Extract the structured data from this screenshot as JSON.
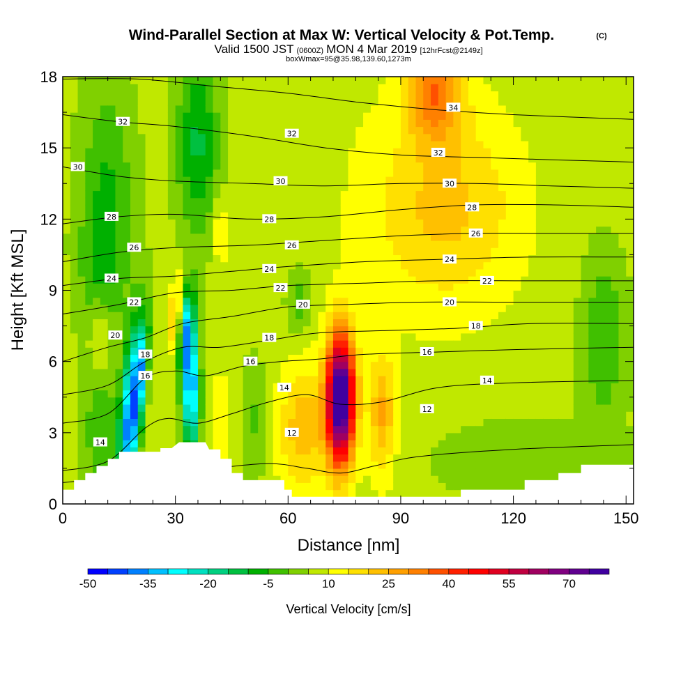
{
  "chart_data": {
    "type": "heatmap",
    "title": "Wind-Parallel Section at Max W: Vertical Velocity & Pot.Temp.",
    "copyright": "(C)",
    "subtitle_valid": "Valid 1500 JST",
    "subtitle_z": "(0600Z)",
    "subtitle_date": "MON 4 Mar 2019",
    "subtitle_fcst": "[12hrFcst@2149z]",
    "subtitle_box": "boxWmax=95@35.98,139.60,1273m",
    "xlabel": "Distance [nm]",
    "ylabel": "Height [Kft MSL]",
    "xlim": [
      0,
      152
    ],
    "ylim": [
      0,
      18
    ],
    "x_ticks": [
      0,
      30,
      60,
      90,
      120,
      150
    ],
    "y_ticks": [
      0,
      3,
      6,
      9,
      12,
      15,
      18
    ],
    "colorbar": {
      "label": "Vertical Velocity [cm/s]",
      "min": -50,
      "max": 80,
      "tick_values": [
        -50,
        -35,
        -20,
        -5,
        10,
        25,
        40,
        55,
        70
      ],
      "colors": [
        "#0000ff",
        "#0040ff",
        "#0080ff",
        "#00c0ff",
        "#00ffff",
        "#00e0c0",
        "#00d080",
        "#00c040",
        "#00b000",
        "#40c000",
        "#80d000",
        "#c0e800",
        "#ffff00",
        "#ffe000",
        "#ffc000",
        "#ffa000",
        "#ff8000",
        "#ff5000",
        "#ff2000",
        "#ff0000",
        "#e00020",
        "#c00040",
        "#a00060",
        "#800080",
        "#600090",
        "#4000a0"
      ]
    },
    "terrain_profile": [
      [
        0,
        0.6
      ],
      [
        3,
        0.6
      ],
      [
        3,
        1.0
      ],
      [
        6,
        1.0
      ],
      [
        6,
        1.3
      ],
      [
        9,
        1.3
      ],
      [
        9,
        1.6
      ],
      [
        12,
        1.6
      ],
      [
        12,
        1.9
      ],
      [
        15,
        1.9
      ],
      [
        15,
        2.2
      ],
      [
        18,
        2.2
      ],
      [
        26,
        2.2
      ],
      [
        26,
        2.35
      ],
      [
        29,
        2.35
      ],
      [
        31,
        2.6
      ],
      [
        38,
        2.6
      ],
      [
        39,
        2.3
      ],
      [
        42,
        2.3
      ],
      [
        42,
        1.9
      ],
      [
        45,
        1.9
      ],
      [
        45,
        1.3
      ],
      [
        48,
        1.3
      ],
      [
        48,
        1.0
      ],
      [
        59,
        1.0
      ],
      [
        59,
        0.6
      ],
      [
        61,
        0.6
      ],
      [
        61,
        0.3
      ],
      [
        106,
        0.3
      ],
      [
        106,
        0.6
      ],
      [
        123,
        0.6
      ],
      [
        123,
        1.0
      ],
      [
        132,
        1.0
      ],
      [
        132,
        1.3
      ],
      [
        138,
        1.3
      ],
      [
        138,
        1.65
      ],
      [
        152,
        1.65
      ]
    ],
    "velocity_features": [
      {
        "x": 18,
        "y": 3.8,
        "sx": 3.0,
        "sy": 1.6,
        "rot": 55,
        "amp": -45
      },
      {
        "x": 21,
        "y": 5.6,
        "sx": 2.0,
        "sy": 0.9,
        "rot": 55,
        "amp": -25
      },
      {
        "x": 34,
        "y": 5.2,
        "sx": 1.6,
        "sy": 2.2,
        "rot": 15,
        "amp": -45
      },
      {
        "x": 33,
        "y": 7.5,
        "sx": 1.5,
        "sy": 1.0,
        "rot": 30,
        "amp": -18
      },
      {
        "x": 10,
        "y": 3.0,
        "sx": 3.5,
        "sy": 2.0,
        "rot": 0,
        "amp": -10
      },
      {
        "x": 12,
        "y": 13.0,
        "sx": 5.0,
        "sy": 3.5,
        "rot": 0,
        "amp": -12
      },
      {
        "x": 10,
        "y": 9.8,
        "sx": 4.0,
        "sy": 2.0,
        "rot": 0,
        "amp": -8
      },
      {
        "x": 36,
        "y": 15.2,
        "sx": 4.0,
        "sy": 2.8,
        "rot": 0,
        "amp": -18
      },
      {
        "x": 63,
        "y": 8.5,
        "sx": 2.5,
        "sy": 1.0,
        "rot": 0,
        "amp": -10
      },
      {
        "x": 51,
        "y": 3.5,
        "sx": 2.5,
        "sy": 2.0,
        "rot": 0,
        "amp": -8
      },
      {
        "x": 144,
        "y": 7.0,
        "sx": 4.0,
        "sy": 2.5,
        "rot": 0,
        "amp": -12
      },
      {
        "x": 120,
        "y": 1.8,
        "sx": 18.0,
        "sy": 1.3,
        "rot": 0,
        "amp": -6
      },
      {
        "x": 74,
        "y": 4.4,
        "sx": 2.6,
        "sy": 1.9,
        "rot": 0,
        "amp": 80
      },
      {
        "x": 64,
        "y": 3.2,
        "sx": 4.5,
        "sy": 1.8,
        "rot": 0,
        "amp": 16
      },
      {
        "x": 85,
        "y": 3.8,
        "sx": 2.5,
        "sy": 1.8,
        "rot": 0,
        "amp": 18
      },
      {
        "x": 99,
        "y": 17.5,
        "sx": 5.0,
        "sy": 1.5,
        "rot": 0,
        "amp": 25
      },
      {
        "x": 102,
        "y": 12.5,
        "sx": 14.0,
        "sy": 3.0,
        "rot": 0,
        "amp": 14
      },
      {
        "x": 30,
        "y": 8.2,
        "sx": 1.8,
        "sy": 0.9,
        "rot": 30,
        "amp": 16
      },
      {
        "x": 42,
        "y": 3.5,
        "sx": 2.0,
        "sy": 1.5,
        "rot": 0,
        "amp": 8
      },
      {
        "x": 42,
        "y": 11.5,
        "sx": 1.5,
        "sy": 1.0,
        "rot": 0,
        "amp": 10
      },
      {
        "x": 10,
        "y": 7.2,
        "sx": 2.0,
        "sy": 1.2,
        "rot": 0,
        "amp": 10
      }
    ],
    "isentropes": [
      {
        "level": 12,
        "points": [
          [
            0,
            0.9
          ],
          [
            20,
            1.2
          ],
          [
            40,
            1.5
          ],
          [
            55,
            1.7
          ],
          [
            65,
            1.5
          ],
          [
            74,
            1.3
          ],
          [
            83,
            1.6
          ],
          [
            95,
            2.0
          ],
          [
            120,
            2.3
          ],
          [
            152,
            2.5
          ]
        ]
      },
      {
        "level": 14,
        "points": [
          [
            0,
            1.4
          ],
          [
            12,
            1.8
          ],
          [
            22,
            3.2
          ],
          [
            28,
            3.6
          ],
          [
            36,
            3.4
          ],
          [
            45,
            3.8
          ],
          [
            55,
            4.3
          ],
          [
            65,
            4.6
          ],
          [
            74,
            4.2
          ],
          [
            85,
            4.3
          ],
          [
            100,
            4.9
          ],
          [
            120,
            5.1
          ],
          [
            152,
            5.2
          ]
        ]
      },
      {
        "level": 16,
        "points": [
          [
            0,
            3.4
          ],
          [
            12,
            3.8
          ],
          [
            22,
            5.3
          ],
          [
            30,
            5.6
          ],
          [
            38,
            5.4
          ],
          [
            48,
            5.8
          ],
          [
            58,
            6.0
          ],
          [
            68,
            6.1
          ],
          [
            80,
            6.3
          ],
          [
            100,
            6.4
          ],
          [
            120,
            6.5
          ],
          [
            152,
            6.6
          ]
        ]
      },
      {
        "level": 18,
        "points": [
          [
            0,
            4.6
          ],
          [
            12,
            5.0
          ],
          [
            22,
            6.0
          ],
          [
            32,
            6.6
          ],
          [
            42,
            6.6
          ],
          [
            55,
            6.9
          ],
          [
            68,
            7.2
          ],
          [
            85,
            7.3
          ],
          [
            105,
            7.4
          ],
          [
            125,
            7.6
          ],
          [
            152,
            7.6
          ]
        ]
      },
      {
        "level": 20,
        "points": [
          [
            0,
            6.0
          ],
          [
            12,
            6.6
          ],
          [
            22,
            7.0
          ],
          [
            32,
            7.6
          ],
          [
            45,
            7.9
          ],
          [
            60,
            8.3
          ],
          [
            75,
            8.4
          ],
          [
            95,
            8.5
          ],
          [
            120,
            8.5
          ],
          [
            152,
            8.5
          ]
        ]
      },
      {
        "level": 22,
        "points": [
          [
            0,
            8.0
          ],
          [
            15,
            8.4
          ],
          [
            30,
            8.9
          ],
          [
            45,
            9.0
          ],
          [
            60,
            9.2
          ],
          [
            80,
            9.3
          ],
          [
            100,
            9.4
          ],
          [
            125,
            9.4
          ],
          [
            152,
            9.4
          ]
        ]
      },
      {
        "level": 24,
        "points": [
          [
            0,
            9.2
          ],
          [
            15,
            9.5
          ],
          [
            30,
            9.6
          ],
          [
            45,
            9.8
          ],
          [
            60,
            10.0
          ],
          [
            80,
            10.2
          ],
          [
            100,
            10.3
          ],
          [
            125,
            10.4
          ],
          [
            152,
            10.4
          ]
        ]
      },
      {
        "level": 26,
        "points": [
          [
            0,
            10.2
          ],
          [
            15,
            10.6
          ],
          [
            30,
            10.8
          ],
          [
            50,
            10.9
          ],
          [
            70,
            11.1
          ],
          [
            90,
            11.3
          ],
          [
            110,
            11.4
          ],
          [
            130,
            11.4
          ],
          [
            152,
            11.4
          ]
        ]
      },
      {
        "level": 28,
        "points": [
          [
            0,
            11.8
          ],
          [
            15,
            12.1
          ],
          [
            30,
            12.2
          ],
          [
            50,
            12.0
          ],
          [
            70,
            12.1
          ],
          [
            90,
            12.4
          ],
          [
            110,
            12.6
          ],
          [
            130,
            12.6
          ],
          [
            152,
            12.5
          ]
        ]
      },
      {
        "level": 30,
        "points": [
          [
            0,
            14.2
          ],
          [
            15,
            13.8
          ],
          [
            30,
            13.6
          ],
          [
            50,
            13.5
          ],
          [
            70,
            13.4
          ],
          [
            90,
            13.5
          ],
          [
            110,
            13.5
          ],
          [
            130,
            13.4
          ],
          [
            152,
            13.3
          ]
        ]
      },
      {
        "level": 32,
        "points": [
          [
            0,
            16.4
          ],
          [
            15,
            16.1
          ],
          [
            30,
            15.9
          ],
          [
            50,
            15.5
          ],
          [
            70,
            15.0
          ],
          [
            90,
            14.7
          ],
          [
            110,
            14.6
          ],
          [
            130,
            14.5
          ],
          [
            152,
            14.4
          ]
        ]
      },
      {
        "level": 34,
        "points": [
          [
            0,
            17.9
          ],
          [
            20,
            17.9
          ],
          [
            40,
            17.6
          ],
          [
            60,
            17.3
          ],
          [
            80,
            16.9
          ],
          [
            100,
            16.6
          ],
          [
            120,
            16.4
          ],
          [
            152,
            16.2
          ]
        ]
      }
    ],
    "contour_labels": [
      {
        "text": "32",
        "x": 16,
        "y": 16.1
      },
      {
        "text": "32",
        "x": 61,
        "y": 15.6
      },
      {
        "text": "34",
        "x": 104,
        "y": 16.7
      },
      {
        "text": "30",
        "x": 4,
        "y": 14.2
      },
      {
        "text": "32",
        "x": 100,
        "y": 14.8
      },
      {
        "text": "30",
        "x": 58,
        "y": 13.6
      },
      {
        "text": "30",
        "x": 103,
        "y": 13.5
      },
      {
        "text": "28",
        "x": 13,
        "y": 12.1
      },
      {
        "text": "28",
        "x": 55,
        "y": 12.0
      },
      {
        "text": "28",
        "x": 109,
        "y": 12.5
      },
      {
        "text": "26",
        "x": 19,
        "y": 10.8
      },
      {
        "text": "26",
        "x": 61,
        "y": 10.9
      },
      {
        "text": "26",
        "x": 110,
        "y": 11.4
      },
      {
        "text": "24",
        "x": 13,
        "y": 9.5
      },
      {
        "text": "24",
        "x": 55,
        "y": 9.9
      },
      {
        "text": "24",
        "x": 103,
        "y": 10.3
      },
      {
        "text": "22",
        "x": 19,
        "y": 8.5
      },
      {
        "text": "22",
        "x": 58,
        "y": 9.1
      },
      {
        "text": "22",
        "x": 113,
        "y": 9.4
      },
      {
        "text": "20",
        "x": 14,
        "y": 7.1
      },
      {
        "text": "20",
        "x": 64,
        "y": 8.4
      },
      {
        "text": "20",
        "x": 103,
        "y": 8.5
      },
      {
        "text": "18",
        "x": 22,
        "y": 6.3
      },
      {
        "text": "18",
        "x": 55,
        "y": 7.0
      },
      {
        "text": "18",
        "x": 110,
        "y": 7.5
      },
      {
        "text": "16",
        "x": 22,
        "y": 5.4
      },
      {
        "text": "16",
        "x": 50,
        "y": 6.0
      },
      {
        "text": "16",
        "x": 97,
        "y": 6.4
      },
      {
        "text": "14",
        "x": 59,
        "y": 4.9
      },
      {
        "text": "14",
        "x": 113,
        "y": 5.2
      },
      {
        "text": "14",
        "x": 10,
        "y": 2.6
      },
      {
        "text": "12",
        "x": 61,
        "y": 3.0
      },
      {
        "text": "12",
        "x": 97,
        "y": 4.0
      }
    ]
  }
}
